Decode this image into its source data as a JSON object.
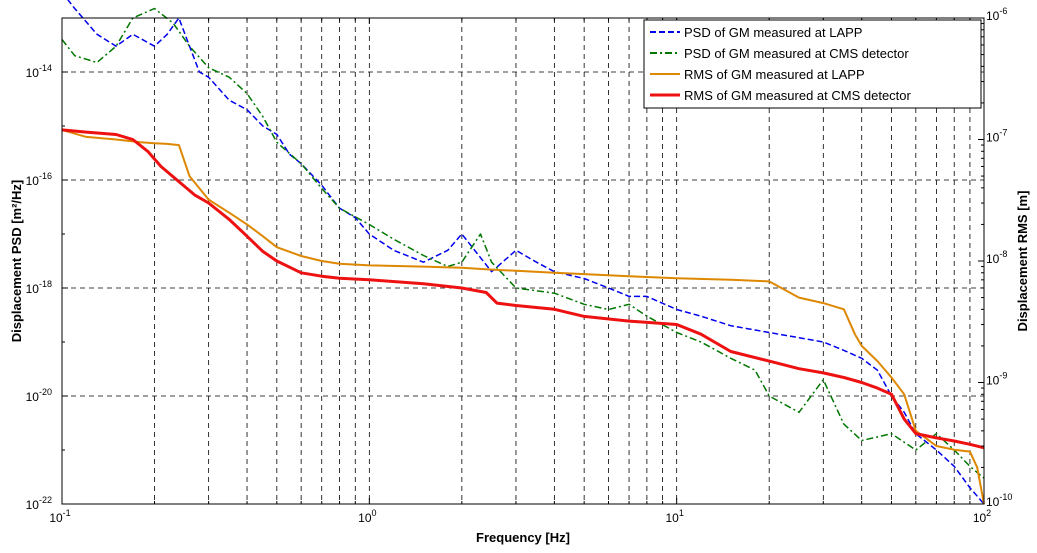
{
  "chart_data": {
    "type": "line",
    "title": "",
    "xlabel": "Frequency [Hz]",
    "ylabel_left": "Displacement PSD [m²/Hz]",
    "ylabel_right": "Displacement RMS [m]",
    "x_scale": "log",
    "y_left_scale": "log",
    "y_right_scale": "log",
    "xlim": [
      0.1,
      100
    ],
    "ylim_left": [
      1e-22,
      1e-13
    ],
    "ylim_right": [
      1e-10,
      1e-06
    ],
    "grid": true,
    "legend_position": "top-right",
    "x_ticks": [
      {
        "base": "10",
        "exp": "-1"
      },
      {
        "base": "10",
        "exp": "0"
      },
      {
        "base": "10",
        "exp": "1"
      },
      {
        "base": "10",
        "exp": "2"
      }
    ],
    "y_left_ticks": [
      {
        "base": "10",
        "exp": "-22"
      },
      {
        "base": "10",
        "exp": "-20"
      },
      {
        "base": "10",
        "exp": "-18"
      },
      {
        "base": "10",
        "exp": "-16"
      },
      {
        "base": "10",
        "exp": "-14"
      }
    ],
    "y_right_ticks": [
      {
        "base": "10",
        "exp": "-10"
      },
      {
        "base": "10",
        "exp": "-9"
      },
      {
        "base": "10",
        "exp": "-8"
      },
      {
        "base": "10",
        "exp": "-7"
      },
      {
        "base": "10",
        "exp": "-6"
      }
    ],
    "series": [
      {
        "name": "PSD of GM measured at LAPP",
        "axis": "left",
        "color": "#0000ee",
        "dash": "dashed",
        "x": [
          0.1,
          0.11,
          0.13,
          0.15,
          0.17,
          0.2,
          0.22,
          0.24,
          0.26,
          0.28,
          0.3,
          0.35,
          0.4,
          0.45,
          0.5,
          0.55,
          0.6,
          0.7,
          0.8,
          0.9,
          1.0,
          1.2,
          1.5,
          1.8,
          2.0,
          2.5,
          3.0,
          3.5,
          4.0,
          5.0,
          6.0,
          7.0,
          8.0,
          10,
          12,
          15,
          20,
          25,
          30,
          35,
          40,
          45,
          50,
          55,
          60,
          70,
          80,
          90,
          100
        ],
        "y": [
          3e-13,
          1.5e-13,
          5e-14,
          3e-14,
          5e-14,
          3e-14,
          5e-14,
          1e-13,
          3e-14,
          1e-14,
          8e-15,
          3e-15,
          2e-15,
          1e-15,
          7e-16,
          3e-16,
          2e-16,
          8e-17,
          3e-17,
          2e-17,
          1e-17,
          5e-18,
          3e-18,
          5e-18,
          1e-17,
          2e-18,
          5e-18,
          3e-18,
          2e-18,
          1.5e-18,
          1e-18,
          7e-19,
          7e-19,
          4e-19,
          3e-19,
          2e-19,
          1.5e-19,
          1.2e-19,
          1e-19,
          7e-20,
          5e-20,
          3e-20,
          1e-20,
          5e-21,
          2e-21,
          1e-21,
          5e-22,
          2e-22,
          1e-22
        ]
      },
      {
        "name": "PSD of GM measured at CMS detector",
        "axis": "left",
        "color": "#007700",
        "dash": "dashdot",
        "x": [
          0.1,
          0.11,
          0.13,
          0.15,
          0.17,
          0.2,
          0.23,
          0.26,
          0.3,
          0.35,
          0.4,
          0.45,
          0.5,
          0.6,
          0.7,
          0.8,
          1.0,
          1.2,
          1.5,
          1.8,
          2.0,
          2.3,
          2.5,
          3.0,
          4.0,
          5.0,
          6.0,
          7.0,
          8.0,
          10,
          12,
          15,
          18,
          20,
          25,
          30,
          35,
          40,
          50,
          60,
          70,
          80,
          90,
          100
        ],
        "y": [
          4e-14,
          2e-14,
          1.5e-14,
          3e-14,
          1e-13,
          1.5e-13,
          8e-14,
          3e-14,
          1.2e-14,
          8e-15,
          4e-15,
          1.5e-15,
          5e-16,
          2e-16,
          7e-17,
          3e-17,
          1.5e-17,
          8e-18,
          4e-18,
          2.5e-18,
          3e-18,
          1e-17,
          3e-18,
          1e-18,
          8e-19,
          5e-19,
          4e-19,
          5e-19,
          3e-19,
          1.5e-19,
          1e-19,
          5e-20,
          3e-20,
          1e-20,
          5e-21,
          2e-20,
          3e-21,
          1.5e-21,
          2e-21,
          1e-21,
          2e-21,
          1e-21,
          5e-22,
          3e-22
        ]
      },
      {
        "name": "RMS of GM measured at LAPP",
        "axis": "right",
        "color": "#dd8800",
        "dash": "solid",
        "x": [
          0.1,
          0.12,
          0.15,
          0.18,
          0.2,
          0.22,
          0.24,
          0.26,
          0.3,
          0.35,
          0.4,
          0.45,
          0.5,
          0.6,
          0.7,
          0.8,
          1.0,
          1.5,
          2.0,
          2.5,
          3.0,
          4.0,
          5.0,
          7.0,
          10,
          15,
          20,
          25,
          30,
          35,
          38,
          40,
          45,
          50,
          55,
          60,
          70,
          80,
          90,
          95,
          100
        ],
        "y": [
          1.2e-07,
          1.05e-07,
          1e-07,
          9.5e-08,
          9.3e-08,
          9.2e-08,
          9e-08,
          5e-08,
          3.2e-08,
          2.5e-08,
          2e-08,
          1.6e-08,
          1.3e-08,
          1.1e-08,
          1e-08,
          9.5e-09,
          9.2e-09,
          9e-09,
          8.8e-09,
          8.5e-09,
          8.3e-09,
          8e-09,
          7.8e-09,
          7.5e-09,
          7.2e-09,
          7e-09,
          6.8e-09,
          5e-09,
          4.5e-09,
          4e-09,
          2.5e-09,
          2e-09,
          1.5e-09,
          1.1e-09,
          8e-10,
          4e-10,
          3e-10,
          2.8e-10,
          2.7e-10,
          2e-10,
          1e-10
        ]
      },
      {
        "name": "RMS of GM measured at CMS detector",
        "axis": "right",
        "color": "#ee1111",
        "dash": "solid",
        "x": [
          0.1,
          0.12,
          0.15,
          0.17,
          0.19,
          0.21,
          0.24,
          0.27,
          0.3,
          0.35,
          0.4,
          0.45,
          0.5,
          0.6,
          0.7,
          0.8,
          1.0,
          1.5,
          2.0,
          2.4,
          2.6,
          3.0,
          4.0,
          5.0,
          7.0,
          10,
          12,
          15,
          20,
          25,
          30,
          35,
          40,
          45,
          50,
          55,
          60,
          70,
          80,
          90,
          100
        ],
        "y": [
          1.2e-07,
          1.15e-07,
          1.1e-07,
          1e-07,
          8e-08,
          6e-08,
          4.5e-08,
          3.5e-08,
          3e-08,
          2.2e-08,
          1.6e-08,
          1.2e-08,
          1e-08,
          8e-09,
          7.5e-09,
          7.2e-09,
          7e-09,
          6.5e-09,
          6e-09,
          5.5e-09,
          4.5e-09,
          4.3e-09,
          4e-09,
          3.5e-09,
          3.2e-09,
          3e-09,
          2.5e-09,
          1.8e-09,
          1.5e-09,
          1.3e-09,
          1.2e-09,
          1.1e-09,
          1e-09,
          9e-10,
          8e-10,
          5e-10,
          3.8e-10,
          3.5e-10,
          3.3e-10,
          3.1e-10,
          2.9e-10
        ]
      }
    ]
  }
}
